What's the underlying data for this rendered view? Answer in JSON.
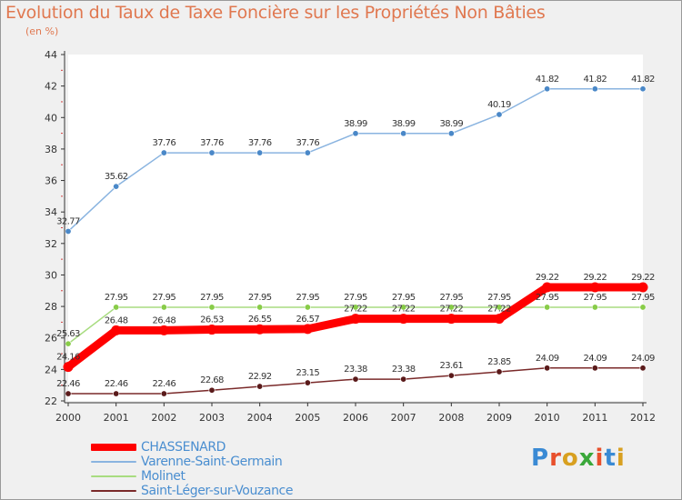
{
  "title": "Evolution du Taux de Taxe Foncière sur les Propriétés Non Bâties",
  "subtitle": "(en %)",
  "logo": {
    "text": "Proxiti",
    "colors": [
      "#3a8ad4",
      "#e8502c",
      "#d8a020",
      "#3aa83a",
      "#e8502c",
      "#3a8ad4",
      "#d8a020"
    ]
  },
  "chart_data": {
    "type": "line",
    "title": "Evolution du Taux de Taxe Foncière sur les Propriétés Non Bâties",
    "ylabel": "(en %)",
    "xlabel": "",
    "ylim": [
      22,
      44
    ],
    "yticks": [
      "22",
      "24",
      "26",
      "28",
      "30",
      "32",
      "34",
      "36",
      "38",
      "40",
      "42",
      "44"
    ],
    "categories": [
      "2000",
      "2001",
      "2002",
      "2003",
      "2004",
      "2005",
      "2006",
      "2007",
      "2008",
      "2009",
      "2010",
      "2011",
      "2012"
    ],
    "series": [
      {
        "name": "CHASSENARD",
        "color": "#ff0000",
        "values": [
          24.16,
          26.48,
          26.48,
          26.53,
          26.55,
          26.57,
          27.22,
          27.22,
          27.22,
          27.22,
          29.22,
          29.22,
          29.22
        ],
        "labels": [
          "24.16",
          "26.48",
          "26.48",
          "26.53",
          "26.55",
          "26.57",
          "27.22",
          "27.22",
          "27.22",
          "27.22",
          "29.22",
          "29.22",
          "29.22"
        ]
      },
      {
        "name": "Varenne-Saint-Germain",
        "color": "#8ab4e0",
        "marker": "#4a88c8",
        "values": [
          32.77,
          35.62,
          37.76,
          37.76,
          37.76,
          37.76,
          38.99,
          38.99,
          38.99,
          40.19,
          41.82,
          41.82,
          41.82
        ],
        "labels": [
          "32.77",
          "35.62",
          "37.76",
          "37.76",
          "37.76",
          "37.76",
          "38.99",
          "38.99",
          "38.99",
          "40.19",
          "41.82",
          "41.82",
          "41.82"
        ]
      },
      {
        "name": "Molinet",
        "color": "#a8dc80",
        "marker": "#88cc48",
        "values": [
          25.63,
          27.95,
          27.95,
          27.95,
          27.95,
          27.95,
          27.95,
          27.95,
          27.95,
          27.95,
          27.95,
          27.95,
          27.95
        ],
        "labels": [
          "25.63",
          "27.95",
          "27.95",
          "27.95",
          "27.95",
          "27.95",
          "27.95",
          "27.95",
          "27.95",
          "27.95",
          "27.95",
          "27.95",
          "27.95"
        ]
      },
      {
        "name": "Saint-Léger-sur-Vouzance",
        "color": "#7a2a2a",
        "marker": "#5a1a1a",
        "values": [
          22.46,
          22.46,
          22.46,
          22.68,
          22.92,
          23.15,
          23.38,
          23.38,
          23.61,
          23.85,
          24.09,
          24.09,
          24.09
        ],
        "labels": [
          "22.46",
          "22.46",
          "22.46",
          "22.68",
          "22.92",
          "23.15",
          "23.38",
          "23.38",
          "23.61",
          "23.85",
          "24.09",
          "24.09",
          "24.09"
        ]
      }
    ],
    "legend_position": "bottom-left"
  }
}
